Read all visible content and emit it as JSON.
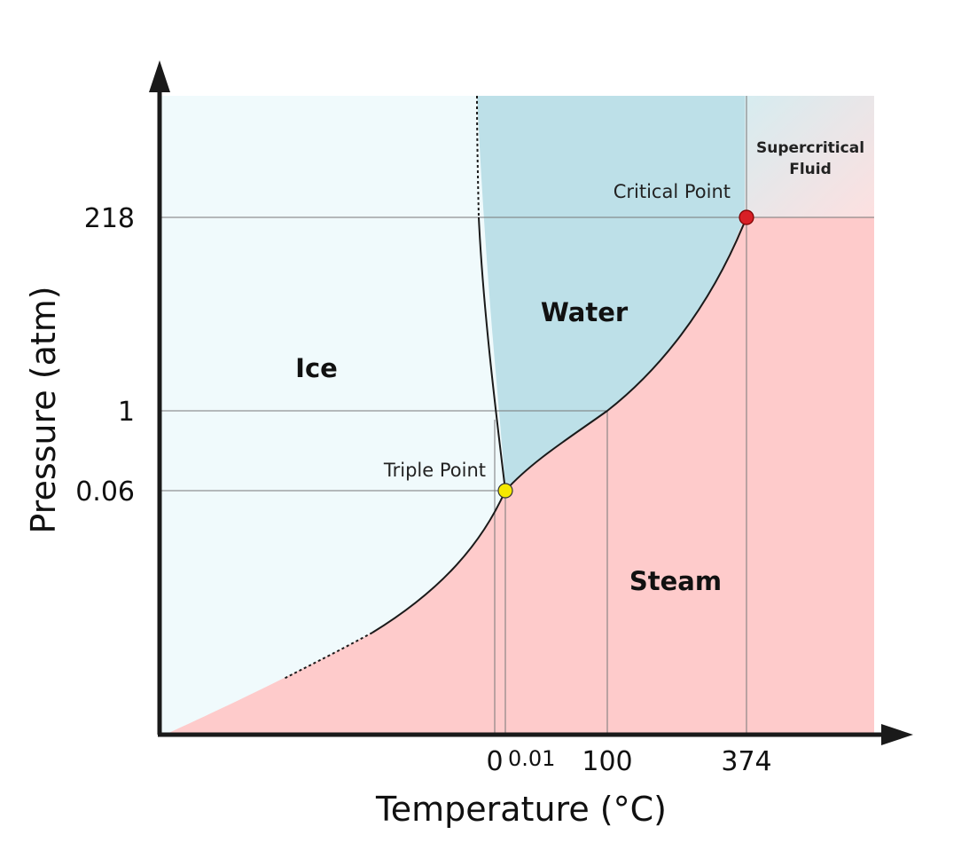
{
  "axes": {
    "x_title": "Temperature (°C)",
    "y_title": "Pressure (atm)",
    "x_ticks": [
      "0",
      "0.01",
      "100",
      "374"
    ],
    "y_ticks": [
      "218",
      "1",
      "0.06"
    ]
  },
  "regions": {
    "ice": "Ice",
    "water": "Water",
    "steam": "Steam",
    "supercritical_line1": "Supercritical",
    "supercritical_line2": "Fluid"
  },
  "points": {
    "triple": {
      "label": "Triple Point",
      "temperature": 0.01,
      "pressure": 0.06
    },
    "critical": {
      "label": "Critical Point",
      "temperature": 374,
      "pressure": 218
    }
  },
  "colors": {
    "ice": "#f0fafc",
    "water": "#bde0e8",
    "steam": "#fecbcb",
    "supercritical_from": "#d6ecf0",
    "supercritical_to": "#fde0e0",
    "triple_point": "#f5e900",
    "critical_point": "#d81f26",
    "boundary": "#1a1a1a",
    "guide": "#777777"
  }
}
